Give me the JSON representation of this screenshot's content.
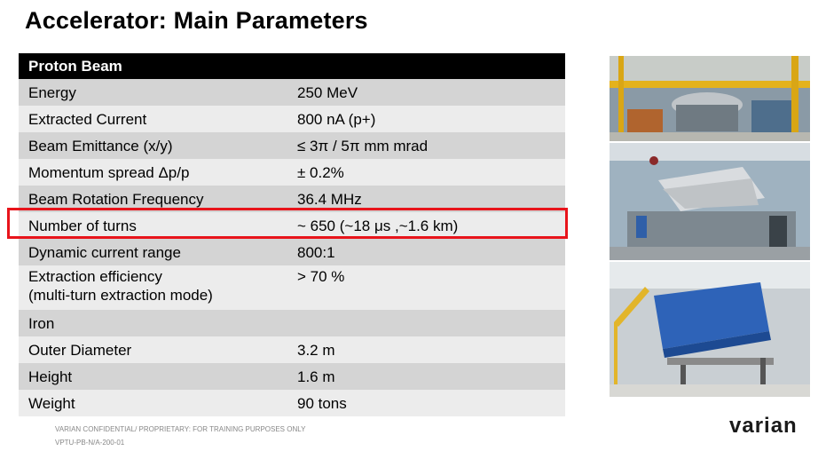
{
  "title": "Accelerator: Main Parameters",
  "table": {
    "header": "Proton Beam",
    "rows": [
      {
        "label": "Energy",
        "value": "250 MeV"
      },
      {
        "label": "Extracted Current",
        "value": "800 nA (p+)"
      },
      {
        "label": "Beam Emittance (x/y)",
        "value": "≤ 3π / 5π mm mrad"
      },
      {
        "label": "Momentum spread Δp/p",
        "value": "± 0.2%"
      },
      {
        "label": "Beam Rotation Frequency",
        "value": "36.4 MHz"
      },
      {
        "label": "Number of turns",
        "value": "~ 650 (~18 μs ,~1.6 km)"
      },
      {
        "label": "Dynamic current range",
        "value": "800:1"
      },
      {
        "label": "Extraction efficiency",
        "label2": "(multi-turn extraction mode)",
        "value": "> 70 %"
      },
      {
        "label": "Iron",
        "value": ""
      },
      {
        "label": "Outer Diameter",
        "value": "3.2 m"
      },
      {
        "label": "Height",
        "value": "1.6 m"
      },
      {
        "label": "Weight",
        "value": "90 tons"
      }
    ]
  },
  "footer": {
    "line1": "VARIAN CONFIDENTIAL/ PROPRIETARY: FOR TRAINING PURPOSES ONLY",
    "line2": "VPTU-PB-N/A-200-01"
  },
  "logo": "varian",
  "colors": {
    "highlight": "#e8141b",
    "header_bg": "#000000",
    "row_dark": "#d4d4d4",
    "row_light": "#ececec"
  }
}
